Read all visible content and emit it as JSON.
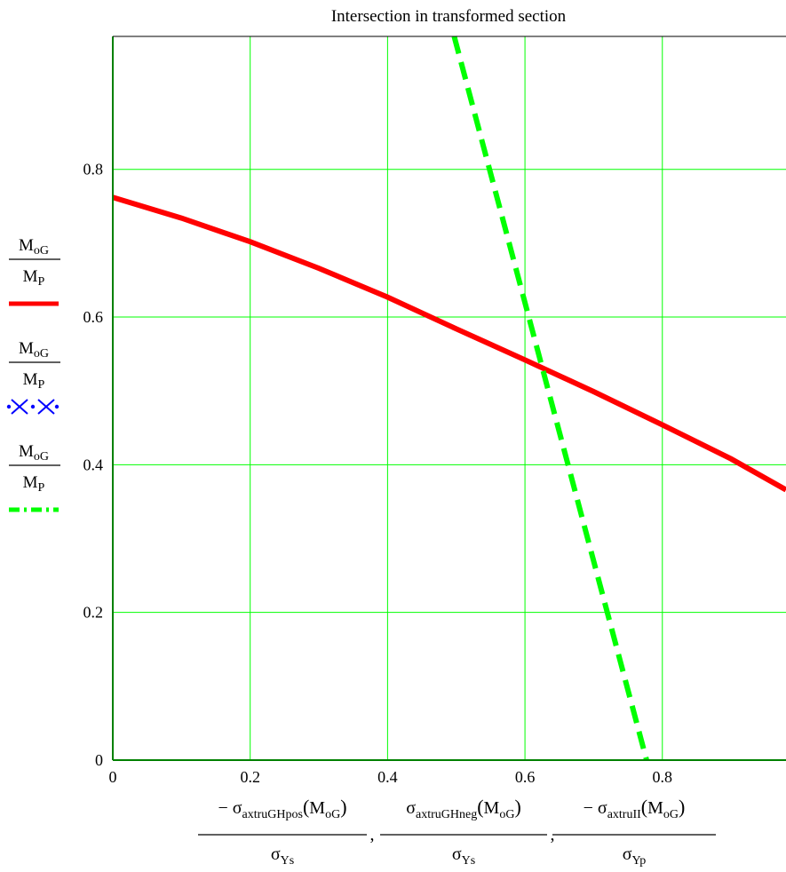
{
  "chart_data": {
    "type": "line",
    "title": "Intersection in transformed section",
    "xlim": [
      0,
      0.98
    ],
    "ylim": [
      0,
      0.98
    ],
    "grid": true,
    "x_ticks": [
      0,
      0.2,
      0.4,
      0.6,
      0.8
    ],
    "x_tick_labels": [
      "0",
      "0.2",
      "0.4",
      "0.6",
      "0.8"
    ],
    "y_ticks": [
      0,
      0.2,
      0.4,
      0.6,
      0.8
    ],
    "y_tick_labels": [
      "0",
      "0.2",
      "0.4",
      "0.6",
      "0.8"
    ],
    "xlabel_parts": [
      {
        "neg": "−",
        "sym": "σ",
        "sub": "axtruGHpos",
        "arg": "M",
        "argsub": "oG",
        "den": "σ",
        "densub": "Ys"
      },
      {
        "neg": "",
        "sym": "σ",
        "sub": "axtruGHneg",
        "arg": "M",
        "argsub": "oG",
        "den": "σ",
        "densub": "Ys"
      },
      {
        "neg": "−",
        "sym": "σ",
        "sub": "axtruII",
        "arg": "M",
        "argsub": "oG",
        "den": "σ",
        "densub": "Yp"
      }
    ],
    "series": [
      {
        "label_num": "M",
        "label_num_sub": "oG",
        "label_den": "M",
        "label_den_sub": "P",
        "style": "solid",
        "color": "#ff0000",
        "x": [
          0,
          0.1,
          0.2,
          0.3,
          0.4,
          0.5,
          0.6,
          0.7,
          0.8,
          0.9,
          0.98
        ],
        "y": [
          0.762,
          0.734,
          0.702,
          0.666,
          0.627,
          0.584,
          0.542,
          0.499,
          0.454,
          0.408,
          0.366
        ]
      },
      {
        "label_num": "M",
        "label_num_sub": "oG",
        "label_den": "M",
        "label_den_sub": "P",
        "style": "dotted-x",
        "color": "#0000ff",
        "x": [],
        "y": []
      },
      {
        "label_num": "M",
        "label_num_sub": "oG",
        "label_den": "M",
        "label_den_sub": "P",
        "style": "dashed",
        "color": "#00ff00",
        "x": [
          0.497,
          0.777
        ],
        "y": [
          0.98,
          0.0
        ]
      }
    ]
  }
}
